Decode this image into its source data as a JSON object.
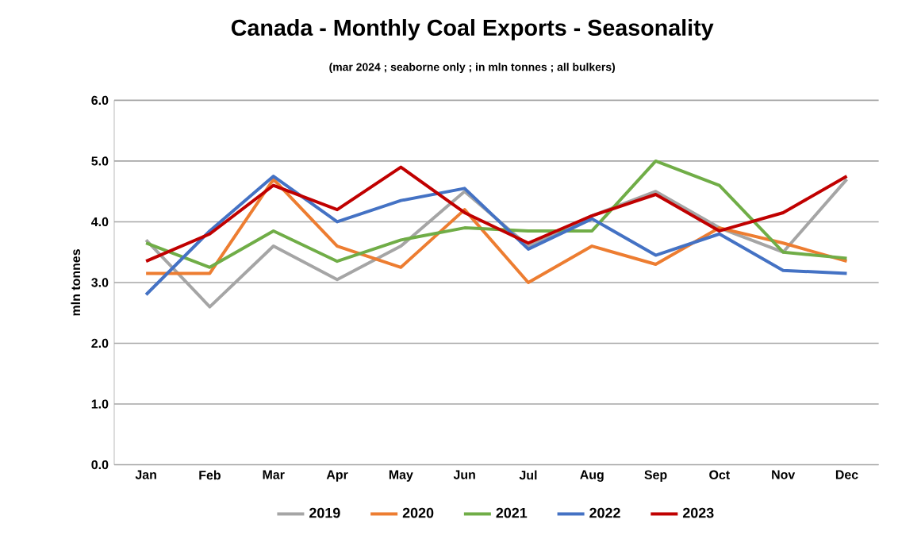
{
  "chart_data": {
    "type": "line",
    "title": "Canada - Monthly Coal Exports - Seasonality",
    "subtitle": "(mar 2024 ; seaborne only ; in mln tonnes ; all bulkers)",
    "ylabel": "mln tonnes",
    "categories": [
      "Jan",
      "Feb",
      "Mar",
      "Apr",
      "May",
      "Jun",
      "Jul",
      "Aug",
      "Sep",
      "Oct",
      "Nov",
      "Dec"
    ],
    "series": [
      {
        "name": "2019",
        "color": "#a5a5a5",
        "values": [
          3.7,
          2.6,
          3.6,
          3.05,
          3.6,
          4.5,
          3.6,
          4.1,
          4.5,
          3.9,
          3.5,
          4.7
        ]
      },
      {
        "name": "2020",
        "color": "#ed7d31",
        "values": [
          3.15,
          3.15,
          4.7,
          3.6,
          3.25,
          4.2,
          3.0,
          3.6,
          3.3,
          3.9,
          3.65,
          3.35
        ]
      },
      {
        "name": "2021",
        "color": "#70ad47",
        "values": [
          3.65,
          3.25,
          3.85,
          3.35,
          3.7,
          3.9,
          3.85,
          3.85,
          5.0,
          4.6,
          3.5,
          3.4
        ]
      },
      {
        "name": "2022",
        "color": "#4472c4",
        "values": [
          2.8,
          3.85,
          4.75,
          4.0,
          4.35,
          4.55,
          3.55,
          4.05,
          3.45,
          3.8,
          3.2,
          3.15
        ]
      },
      {
        "name": "2023",
        "color": "#c00000",
        "values": [
          3.35,
          3.8,
          4.6,
          4.2,
          4.9,
          4.15,
          3.65,
          4.1,
          4.45,
          3.85,
          4.15,
          4.75
        ]
      }
    ],
    "ylim": [
      0,
      6
    ],
    "yticks": [
      {
        "value": 0,
        "label": "0.0"
      },
      {
        "value": 1,
        "label": "1.0"
      },
      {
        "value": 2,
        "label": "2.0"
      },
      {
        "value": 3,
        "label": "3.0"
      },
      {
        "value": 4,
        "label": "4.0"
      },
      {
        "value": 5,
        "label": "5.0"
      },
      {
        "value": 6,
        "label": "6.0"
      }
    ],
    "grid": "y",
    "legend": "bottom"
  }
}
